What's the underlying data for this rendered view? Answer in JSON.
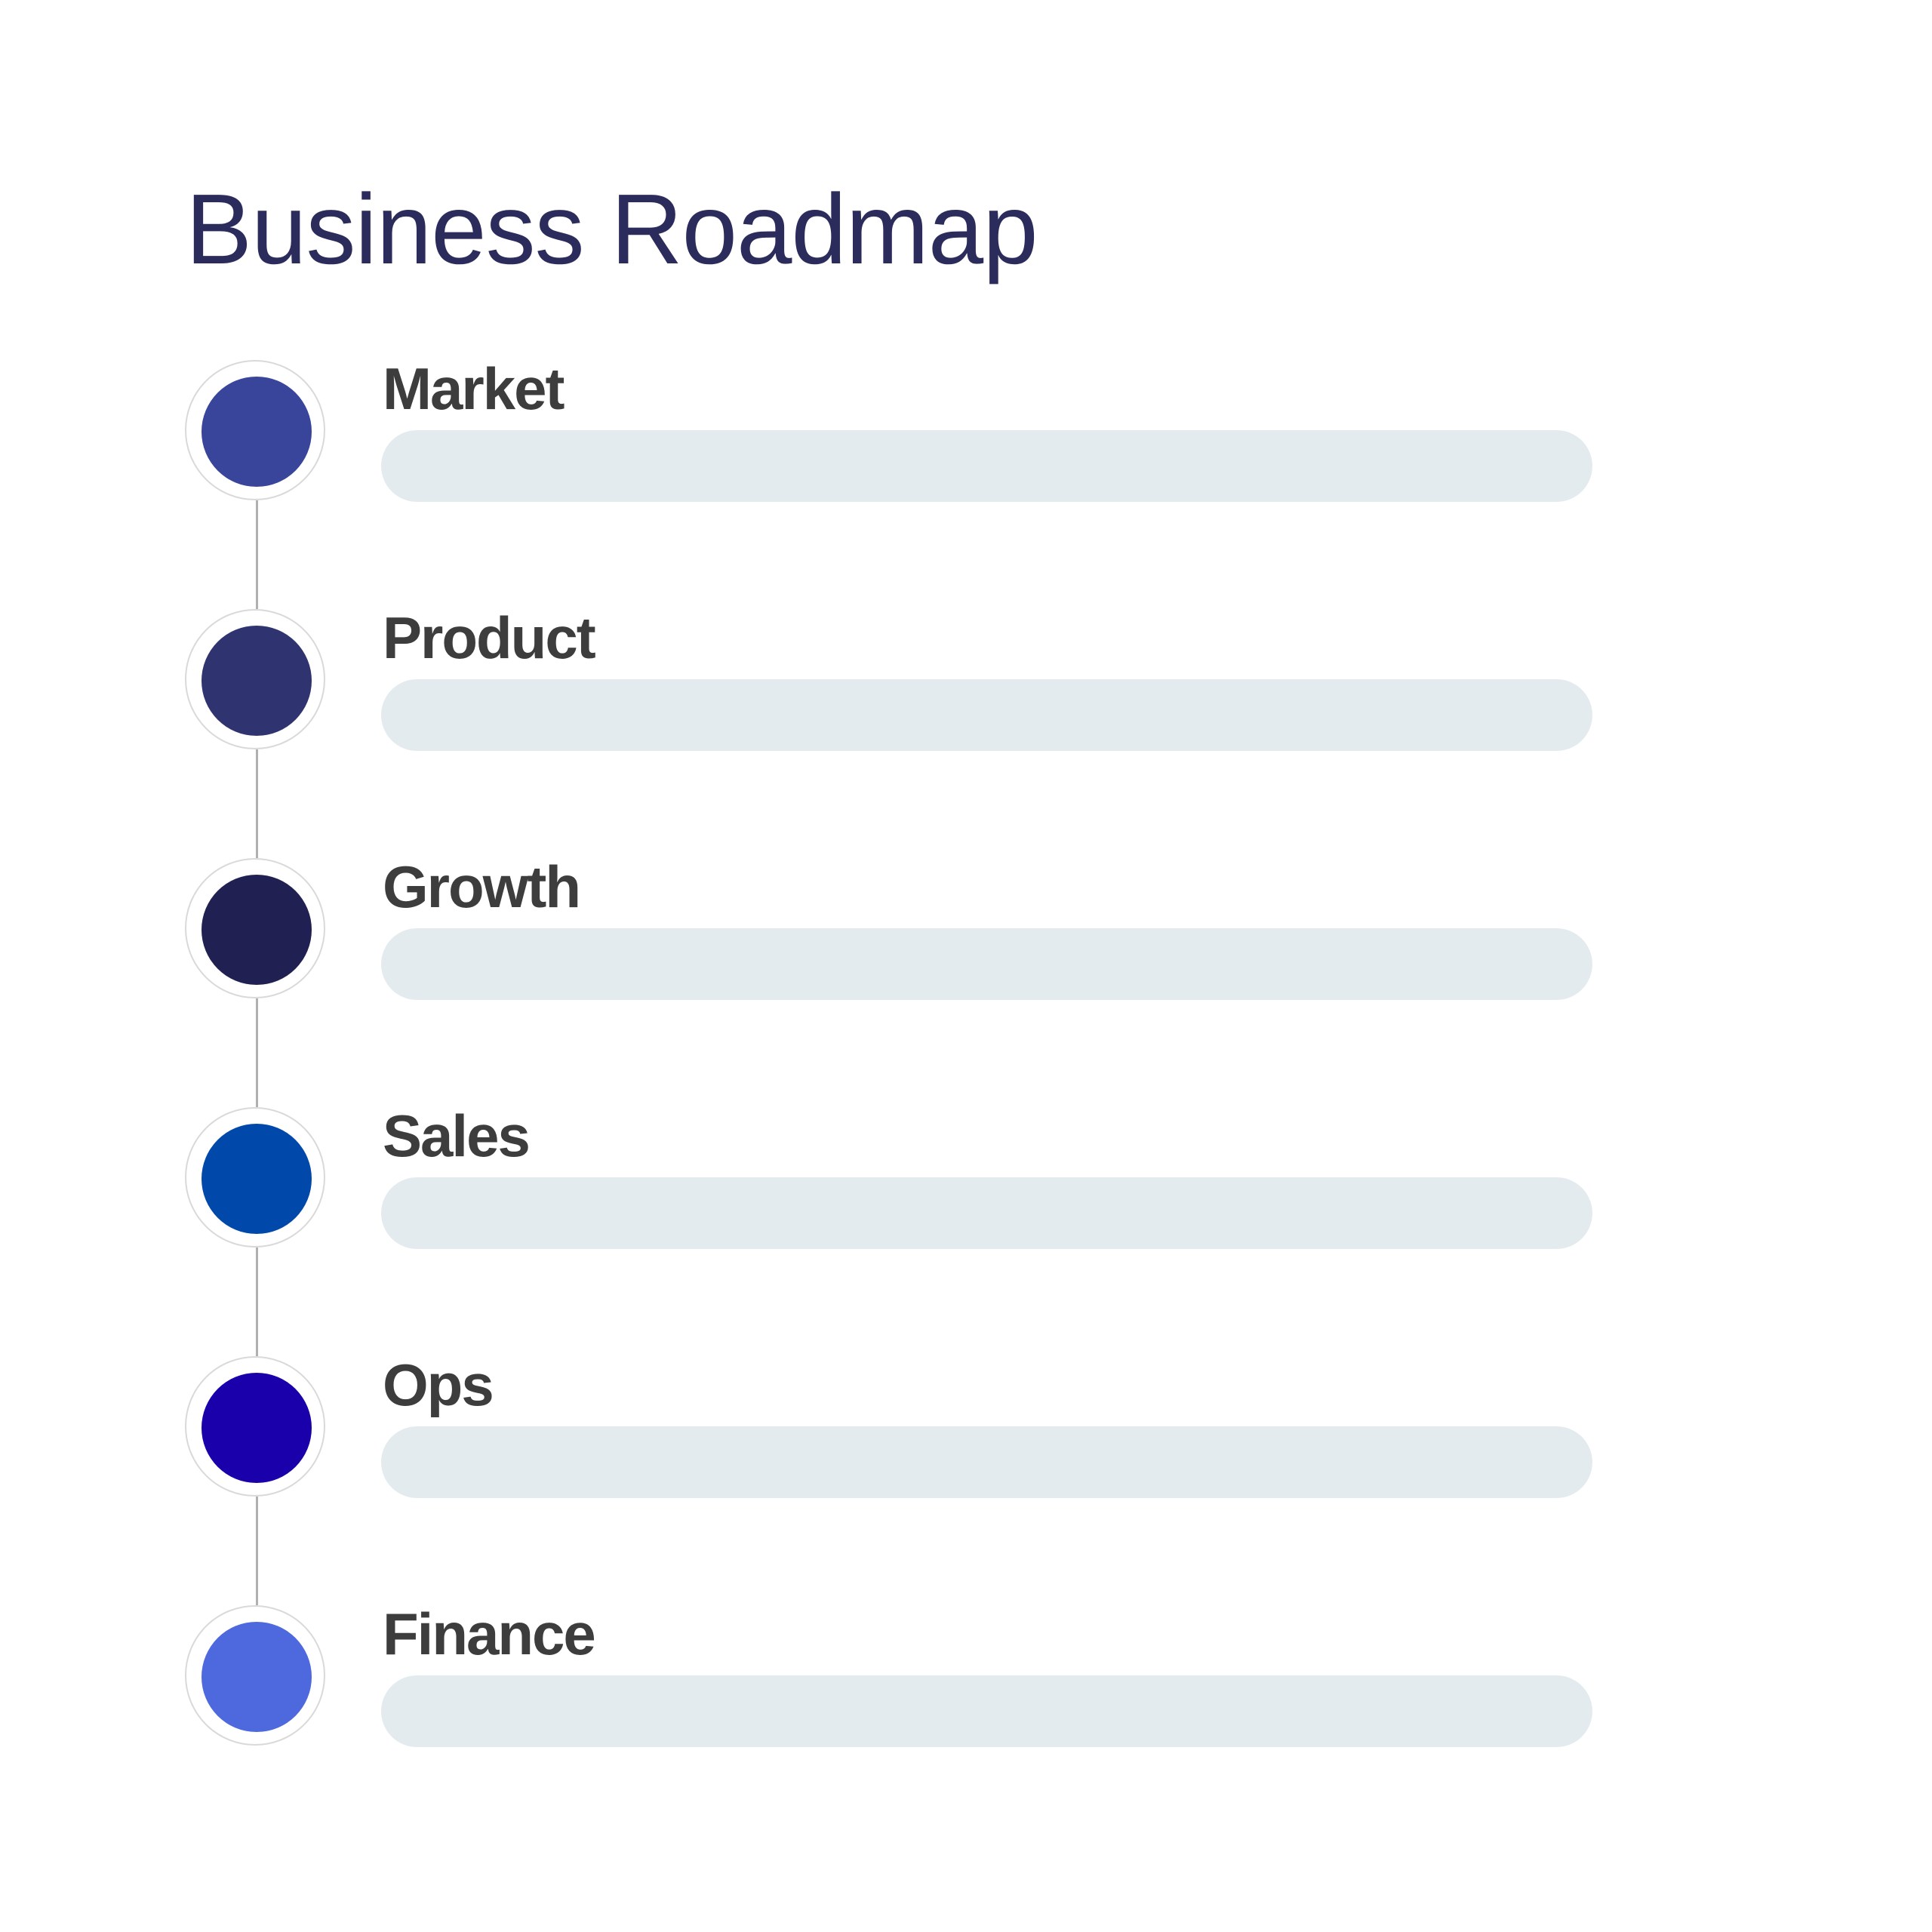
{
  "title": "Business Roadmap",
  "stages": [
    {
      "label": "Market",
      "color": "#38459b"
    },
    {
      "label": "Product",
      "color": "#2f3470"
    },
    {
      "label": "Growth",
      "color": "#202052"
    },
    {
      "label": "Sales",
      "color": "#0049ab"
    },
    {
      "label": "Ops",
      "color": "#1a00aa"
    },
    {
      "label": "Finance",
      "color": "#4d69dd"
    }
  ]
}
